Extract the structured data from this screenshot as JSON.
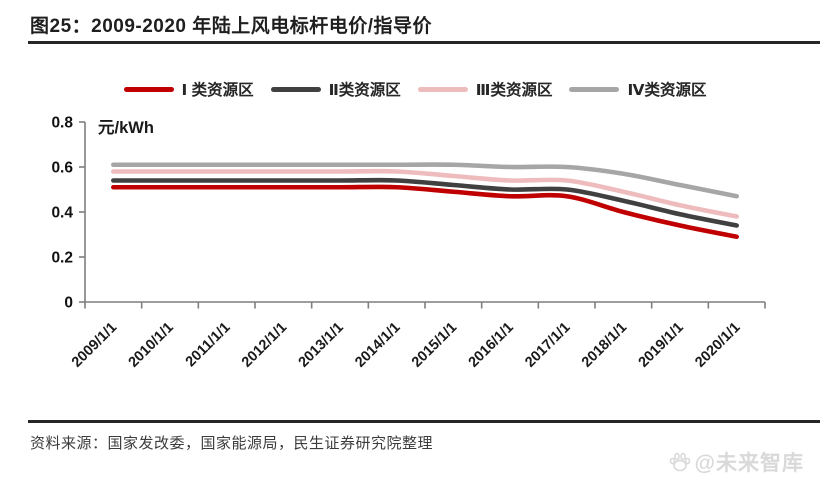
{
  "header": {
    "title": "图25：2009-2020 年陆上风电标杆电价/指导价"
  },
  "footer": {
    "source_note": "资料来源：国家发改委，国家能源局，民生证券研究院整理",
    "watermark_text": "@未来智库"
  },
  "icons": {
    "watermark_logo": "baidu-paw-icon"
  },
  "chart_data": {
    "type": "line",
    "title": "2009-2020 年陆上风电标杆电价/指导价",
    "unit_label": "元/kWh",
    "xlabel": "",
    "ylabel": "元/kWh",
    "x": [
      "2009/1/1",
      "2010/1/1",
      "2011/1/1",
      "2012/1/1",
      "2013/1/1",
      "2014/1/1",
      "2015/1/1",
      "2016/1/1",
      "2017/1/1",
      "2018/1/1",
      "2019/1/1",
      "2020/1/1"
    ],
    "ylim": [
      0,
      0.8
    ],
    "yticks": [
      0,
      0.2,
      0.4,
      0.6,
      0.8
    ],
    "ytick_labels": [
      "0",
      "0.2",
      "0.4",
      "0.6",
      "0.8"
    ],
    "grid": false,
    "legend_position": "top",
    "series": [
      {
        "name": "Ⅰ 类资源区",
        "color": "#C00000",
        "values": [
          0.51,
          0.51,
          0.51,
          0.51,
          0.51,
          0.51,
          0.49,
          0.47,
          0.47,
          0.4,
          0.34,
          0.29
        ]
      },
      {
        "name": "Ⅱ类资源区",
        "color": "#404040",
        "values": [
          0.54,
          0.54,
          0.54,
          0.54,
          0.54,
          0.54,
          0.52,
          0.5,
          0.5,
          0.45,
          0.39,
          0.34
        ]
      },
      {
        "name": "Ⅲ类资源区",
        "color": "#EFBCBD",
        "values": [
          0.58,
          0.58,
          0.58,
          0.58,
          0.58,
          0.58,
          0.56,
          0.54,
          0.54,
          0.49,
          0.43,
          0.38
        ]
      },
      {
        "name": "Ⅳ类资源区",
        "color": "#A6A6A6",
        "values": [
          0.61,
          0.61,
          0.61,
          0.61,
          0.61,
          0.61,
          0.61,
          0.6,
          0.6,
          0.57,
          0.52,
          0.47
        ]
      }
    ]
  }
}
